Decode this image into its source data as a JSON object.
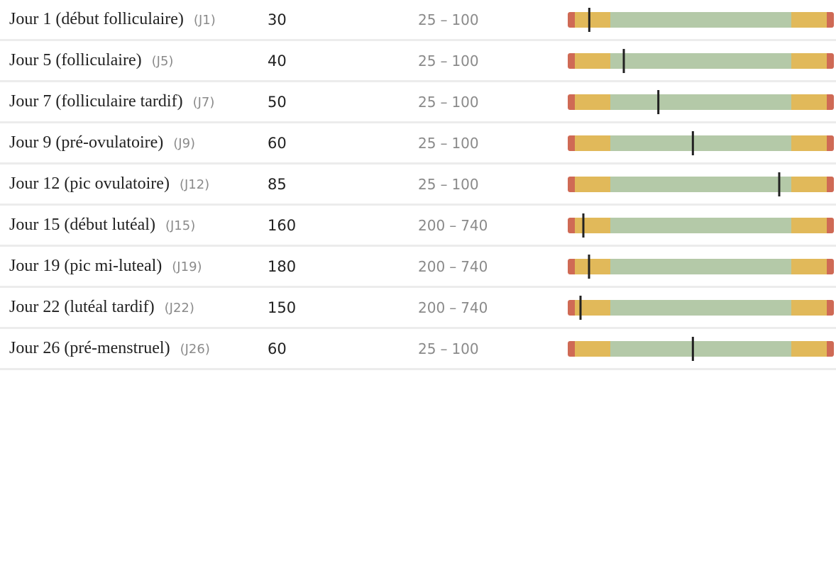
{
  "range_separator": "–",
  "rows": [
    {
      "label": "Jour 1 (début folliculaire)",
      "code": "(J1)",
      "value": 30,
      "low": 25,
      "high": 100
    },
    {
      "label": "Jour 5 (folliculaire)",
      "code": "(J5)",
      "value": 40,
      "low": 25,
      "high": 100
    },
    {
      "label": "Jour 7 (folliculaire tardif)",
      "code": "(J7)",
      "value": 50,
      "low": 25,
      "high": 100
    },
    {
      "label": "Jour 9 (pré-ovulatoire)",
      "code": "(J9)",
      "value": 60,
      "low": 25,
      "high": 100
    },
    {
      "label": "Jour 12 (pic ovulatoire)",
      "code": "(J12)",
      "value": 85,
      "low": 25,
      "high": 100
    },
    {
      "label": "Jour 15 (début lutéal)",
      "code": "(J15)",
      "value": 160,
      "low": 200,
      "high": 740
    },
    {
      "label": "Jour 19 (pic mi-luteal)",
      "code": "(J19)",
      "value": 180,
      "low": 200,
      "high": 740
    },
    {
      "label": "Jour 22 (lutéal tardif)",
      "code": "(J22)",
      "value": 150,
      "low": 200,
      "high": 740
    },
    {
      "label": "Jour 26 (pré-menstruel)",
      "code": "(J26)",
      "value": 60,
      "low": 25,
      "high": 100
    }
  ]
}
